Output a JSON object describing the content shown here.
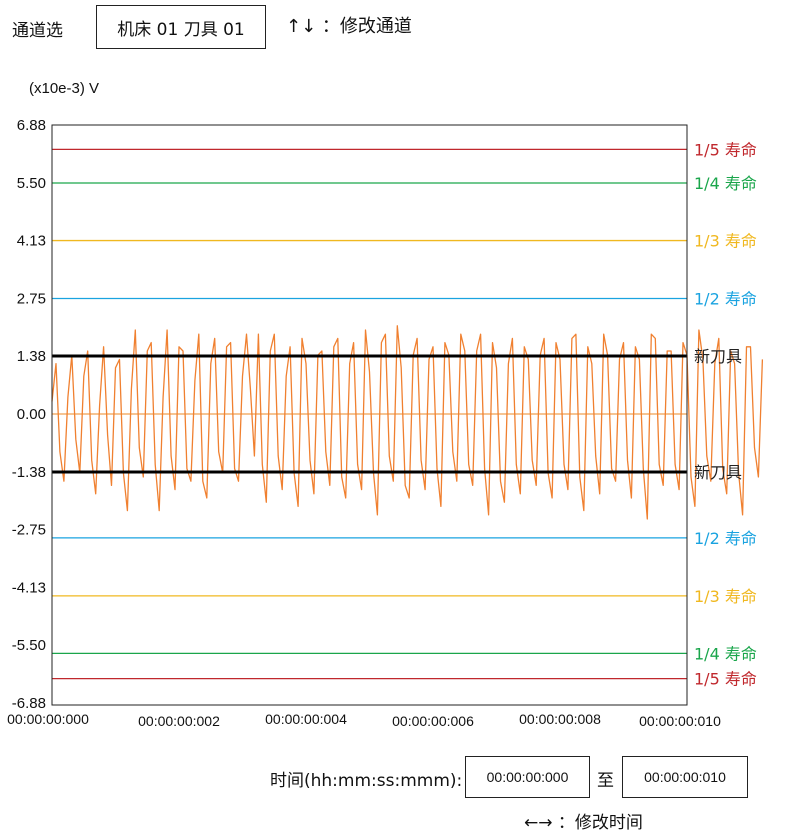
{
  "header": {
    "channel_label": "通道选",
    "channel_value": "机床 01 刀具 01",
    "channel_hint": "↑↓ ：修改通道"
  },
  "footer": {
    "time_label": "时间(hh:mm:ss:mmm):",
    "start_time": "00:00:00:000",
    "to_label": "至",
    "end_time": "00:00:00:010",
    "time_hint": "←→ ：修改时间"
  },
  "chart_data": {
    "type": "line",
    "ylabel": "(x10e-3) V",
    "ylim": [
      -6.88,
      6.88
    ],
    "xlim": [
      0,
      0.01
    ],
    "y_ticks": [
      "6.88",
      "5.50",
      "4.13",
      "2.75",
      "1.38",
      "0.00",
      "-1.38",
      "-2.75",
      "-4.13",
      "-5.50",
      "-6.88"
    ],
    "x_ticks": [
      "00:00:00:000",
      "00:00:00:002",
      "00:00:00:004",
      "00:00:00:006",
      "00:00:00:008",
      "00:00:00:010"
    ],
    "thresholds": [
      {
        "label": "1/5 寿命",
        "value": 6.3,
        "color": "#c0282d",
        "width": 1.3
      },
      {
        "label": "1/4 寿命",
        "value": 5.5,
        "color": "#1aa64b",
        "width": 1.3
      },
      {
        "label": "1/3 寿命",
        "value": 4.13,
        "color": "#f0b820",
        "width": 1.3
      },
      {
        "label": "1/2 寿命",
        "value": 2.75,
        "color": "#1aa3e0",
        "width": 1.3
      },
      {
        "label": "新刀具",
        "value": 1.38,
        "color": "#000000",
        "width": 3
      },
      {
        "label": "新刀具",
        "value": -1.38,
        "color": "#000000",
        "width": 3
      },
      {
        "label": "1/2 寿命",
        "value": -2.95,
        "color": "#1aa3e0",
        "width": 1.3
      },
      {
        "label": "1/3 寿命",
        "value": -4.33,
        "color": "#f0b820",
        "width": 1.3
      },
      {
        "label": "1/4 寿命",
        "value": -5.7,
        "color": "#1aa64b",
        "width": 1.3
      },
      {
        "label": "1/5 寿命",
        "value": -6.3,
        "color": "#c0282d",
        "width": 1.3
      }
    ],
    "zero_line": {
      "value": 0,
      "color": "#f0a050"
    },
    "series": [
      {
        "color": "#f08030",
        "x_step": 6.25e-05,
        "y": [
          0.3,
          1.2,
          -0.9,
          -1.6,
          0.4,
          1.4,
          -0.6,
          -1.4,
          0.9,
          1.5,
          -1.1,
          -1.9,
          0.2,
          1.6,
          -0.5,
          -1.7,
          1.1,
          1.3,
          -1.4,
          -2.3,
          0.6,
          2.0,
          -0.8,
          -1.5,
          1.5,
          1.7,
          -1.2,
          -2.3,
          0.4,
          2.0,
          -1.0,
          -1.8,
          1.6,
          1.5,
          -1.3,
          -1.6,
          0.8,
          1.9,
          -1.6,
          -2.0,
          1.2,
          1.8,
          -0.9,
          -1.4,
          1.6,
          1.7,
          -1.3,
          -1.6,
          0.9,
          1.9,
          0.6,
          -1.0,
          1.9,
          -1.2,
          -2.1,
          1.5,
          1.9,
          -1.0,
          -1.8,
          0.9,
          1.6,
          -1.4,
          -2.2,
          1.8,
          1.2,
          -1.1,
          -1.9,
          1.4,
          1.5,
          -0.9,
          -1.7,
          1.6,
          1.8,
          -1.5,
          -2.0,
          1.2,
          1.7,
          -1.2,
          -1.8,
          2.0,
          1.0,
          -1.4,
          -2.4,
          1.7,
          1.9,
          -1.0,
          -1.6,
          2.1,
          1.1,
          -1.7,
          -2.0,
          1.4,
          1.8,
          -1.1,
          -1.8,
          1.3,
          1.6,
          -1.3,
          -2.2,
          1.7,
          1.4,
          -0.9,
          -1.6,
          1.9,
          1.5,
          -1.2,
          -1.7,
          1.5,
          1.9,
          -1.3,
          -2.4,
          1.7,
          1.1,
          -1.6,
          -2.1,
          1.2,
          1.8,
          -1.2,
          -1.9,
          1.6,
          1.3,
          -1.1,
          -1.7,
          1.4,
          1.8,
          -1.4,
          -2.0,
          1.7,
          1.3,
          -1.2,
          -1.8,
          1.8,
          1.9,
          -1.5,
          -2.3,
          1.6,
          1.2,
          -1.0,
          -1.9,
          1.9,
          1.4,
          -1.3,
          -1.6,
          1.3,
          1.7,
          -1.1,
          -2.0,
          1.6,
          1.3,
          -1.3,
          -2.5,
          1.9,
          1.8,
          -1.2,
          -1.7,
          1.5,
          1.5,
          -1.2,
          -1.8,
          1.7,
          1.4,
          -1.5,
          -2.2,
          2.0,
          1.3,
          -1.0,
          -1.6,
          1.2,
          1.8,
          -1.3,
          -1.9,
          1.5,
          1.2,
          -1.4,
          -2.4,
          1.6,
          1.6,
          -0.8,
          -1.5,
          1.3
        ]
      }
    ]
  }
}
